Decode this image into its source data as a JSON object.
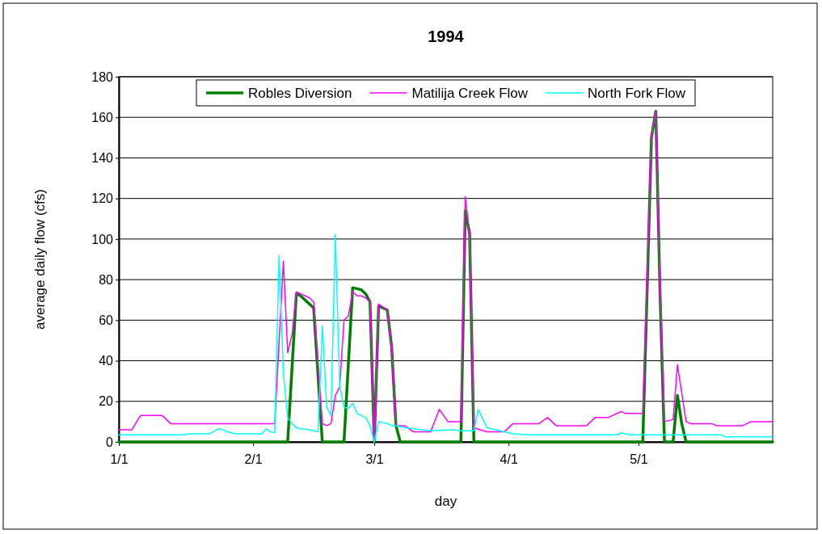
{
  "chart_data": {
    "type": "line",
    "title": "1994",
    "xlabel": "day",
    "ylabel": "average daily flow (cfs)",
    "xlim": [
      "1994-01-01",
      "1994-06-01"
    ],
    "xticks": [
      {
        "value": "1994-01-01",
        "label": "1/1"
      },
      {
        "value": "1994-02-01",
        "label": "2/1"
      },
      {
        "value": "1994-03-01",
        "label": "3/1"
      },
      {
        "value": "1994-04-01",
        "label": "4/1"
      },
      {
        "value": "1994-05-01",
        "label": "5/1"
      }
    ],
    "ylim": [
      0,
      180
    ],
    "yticks": [
      0,
      20,
      40,
      60,
      80,
      100,
      120,
      140,
      160,
      180
    ],
    "grid": "y",
    "legend": "top",
    "marker": "none",
    "line_style": "solid",
    "series": [
      {
        "name": "Robles Diversion",
        "color": "#008000",
        "x": [
          "1994-01-01",
          "1994-02-09",
          "1994-02-11",
          "1994-02-12",
          "1994-02-13",
          "1994-02-14",
          "1994-02-15",
          "1994-02-17",
          "1994-02-22",
          "1994-02-24",
          "1994-02-26",
          "1994-02-27",
          "1994-02-28",
          "1994-03-01",
          "1994-03-02",
          "1994-03-04",
          "1994-03-05",
          "1994-03-06",
          "1994-03-07",
          "1994-03-21",
          "1994-03-22",
          "1994-03-23",
          "1994-03-24",
          "1994-05-02",
          "1994-05-04",
          "1994-05-05",
          "1994-05-06",
          "1994-05-07",
          "1994-05-09",
          "1994-05-10",
          "1994-05-11",
          "1994-05-12",
          "1994-06-01"
        ],
        "values": [
          0,
          0,
          73,
          72,
          70,
          68,
          66,
          0,
          0,
          76,
          75,
          73,
          69,
          0,
          67,
          65,
          47,
          8,
          0,
          0,
          114,
          103,
          0,
          0,
          150,
          163,
          72,
          0,
          0,
          23,
          9,
          0,
          0
        ]
      },
      {
        "name": "Matilija Creek Flow",
        "color": "#ff00ff",
        "x": [
          "1994-01-01",
          "1994-01-04",
          "1994-01-06",
          "1994-01-11",
          "1994-01-13",
          "1994-02-06",
          "1994-02-08",
          "1994-02-09",
          "1994-02-10",
          "1994-02-11",
          "1994-02-12",
          "1994-02-14",
          "1994-02-15",
          "1994-02-17",
          "1994-02-18",
          "1994-02-19",
          "1994-02-20",
          "1994-02-21",
          "1994-02-22",
          "1994-02-23",
          "1994-02-24",
          "1994-02-25",
          "1994-02-26",
          "1994-02-27",
          "1994-02-28",
          "1994-03-01",
          "1994-03-02",
          "1994-03-04",
          "1994-03-05",
          "1994-03-06",
          "1994-03-08",
          "1994-03-10",
          "1994-03-14",
          "1994-03-16",
          "1994-03-18",
          "1994-03-21",
          "1994-03-22",
          "1994-03-23",
          "1994-03-24",
          "1994-03-27",
          "1994-03-31",
          "1994-04-02",
          "1994-04-08",
          "1994-04-10",
          "1994-04-12",
          "1994-04-19",
          "1994-04-21",
          "1994-04-24",
          "1994-04-27",
          "1994-04-28",
          "1994-05-02",
          "1994-05-04",
          "1994-05-05",
          "1994-05-06",
          "1994-05-07",
          "1994-05-09",
          "1994-05-10",
          "1994-05-12",
          "1994-05-13",
          "1994-05-18",
          "1994-05-19",
          "1994-05-25",
          "1994-05-27",
          "1994-06-01"
        ],
        "values": [
          6,
          6,
          13,
          13,
          9,
          9,
          89,
          44,
          53,
          74,
          73,
          71,
          69,
          9,
          8,
          9,
          23,
          27,
          60,
          62,
          74,
          72,
          72,
          71,
          69,
          0,
          68,
          65,
          47,
          8,
          8,
          5,
          5,
          16,
          10,
          10,
          121,
          102,
          7,
          5,
          5,
          9,
          9,
          12,
          8,
          8,
          12,
          12,
          15,
          14,
          14,
          150,
          163,
          75,
          10,
          11,
          38,
          10,
          9,
          9,
          8,
          8,
          10,
          10
        ]
      },
      {
        "name": "North Fork Flow",
        "color": "#00ffff",
        "x": [
          "1994-01-01",
          "1994-01-16",
          "1994-01-17",
          "1994-01-22",
          "1994-01-24",
          "1994-01-25",
          "1994-01-26",
          "1994-01-28",
          "1994-02-03",
          "1994-02-04",
          "1994-02-05",
          "1994-02-06",
          "1994-02-07",
          "1994-02-08",
          "1994-02-09",
          "1994-02-10",
          "1994-02-11",
          "1994-02-12",
          "1994-02-14",
          "1994-02-16",
          "1994-02-17",
          "1994-02-18",
          "1994-02-19",
          "1994-02-20",
          "1994-02-21",
          "1994-02-22",
          "1994-02-23",
          "1994-02-24",
          "1994-02-25",
          "1994-02-26",
          "1994-02-27",
          "1994-02-28",
          "1994-03-01",
          "1994-03-02",
          "1994-03-04",
          "1994-03-05",
          "1994-03-06",
          "1994-03-08",
          "1994-03-12",
          "1994-03-14",
          "1994-03-19",
          "1994-03-21",
          "1994-03-24",
          "1994-03-25",
          "1994-03-27",
          "1994-03-31",
          "1994-04-02",
          "1994-04-06",
          "1994-04-26",
          "1994-04-27",
          "1994-04-29",
          "1994-05-20",
          "1994-05-21",
          "1994-06-01"
        ],
        "values": [
          3.5,
          3.5,
          4,
          4,
          6.5,
          6,
          5,
          4,
          4,
          6.5,
          5,
          4.5,
          92,
          34,
          12,
          9,
          7,
          6.5,
          6,
          5,
          57,
          17,
          13,
          102,
          28,
          17,
          16.5,
          19,
          14,
          13,
          12,
          8,
          0,
          10,
          9,
          8,
          8,
          7,
          6,
          5.5,
          6,
          5.5,
          5.5,
          16,
          7,
          5,
          4,
          3.5,
          3.5,
          4.5,
          3.5,
          3.5,
          2.5,
          2.5
        ]
      }
    ]
  }
}
